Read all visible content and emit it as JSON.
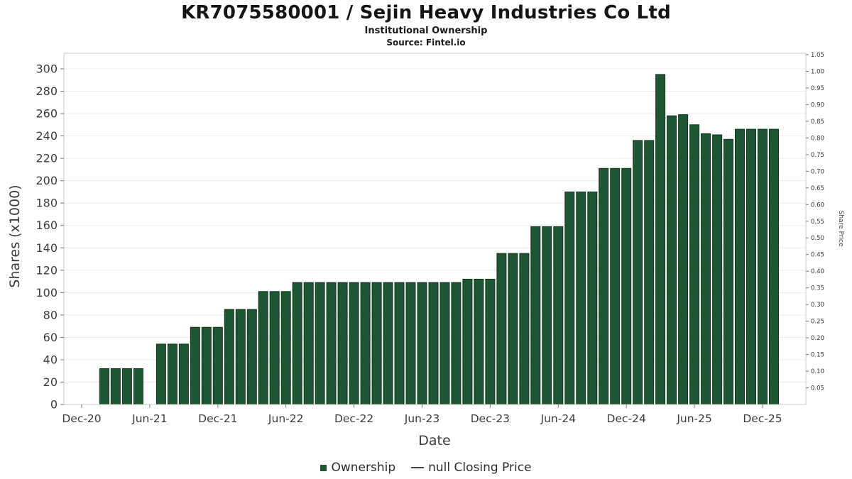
{
  "header": {
    "title": "KR7075580001 / Sejin Heavy Industries Co Ltd",
    "subtitle": "Institutional Ownership",
    "source": "Source: Fintel.io"
  },
  "chart_data": {
    "type": "bar",
    "title": "KR7075580001 / Sejin Heavy Industries Co Ltd",
    "subtitle": "Institutional Ownership",
    "source": "Source: Fintel.io",
    "xlabel": "Date",
    "ylabel": "Shares (x1000)",
    "ylabel_right": "Share Price",
    "series_name": "Ownership",
    "grid": "horizontal",
    "x_tick_labels": [
      "Dec-20",
      "Jun-21",
      "Dec-21",
      "Jun-22",
      "Dec-22",
      "Jun-23",
      "Dec-23",
      "Jun-24",
      "Dec-24",
      "Jun-25",
      "Dec-25"
    ],
    "left_axis": {
      "min": 0,
      "max": 300,
      "step": 20
    },
    "right_axis": {
      "min": 0.05,
      "max": 1.05,
      "step": 0.05
    },
    "bar_color": "#1e5631",
    "bar_edge_color": "#0e3a1c",
    "x_months": [
      "2021-02",
      "2021-03",
      "2021-04",
      "2021-05",
      "2021-07",
      "2021-08",
      "2021-09",
      "2021-10",
      "2021-11",
      "2021-12",
      "2022-01",
      "2022-02",
      "2022-03",
      "2022-04",
      "2022-05",
      "2022-06",
      "2022-07",
      "2022-08",
      "2022-09",
      "2022-10",
      "2022-11",
      "2022-12",
      "2023-01",
      "2023-02",
      "2023-03",
      "2023-04",
      "2023-05",
      "2023-06",
      "2023-07",
      "2023-08",
      "2023-09",
      "2023-10",
      "2023-11",
      "2023-12",
      "2024-01",
      "2024-02",
      "2024-03",
      "2024-04",
      "2024-05",
      "2024-06",
      "2024-07",
      "2024-08",
      "2024-09",
      "2024-10",
      "2024-11",
      "2024-12",
      "2025-01",
      "2025-02",
      "2025-03",
      "2025-04",
      "2025-05",
      "2025-06",
      "2025-07",
      "2025-08",
      "2025-09",
      "2025-10",
      "2025-11",
      "2025-12",
      "2026-01"
    ],
    "values": [
      32,
      32,
      32,
      32,
      54,
      54,
      54,
      69,
      69,
      69,
      85,
      85,
      85,
      101,
      101,
      101,
      109,
      109,
      109,
      109,
      109,
      109,
      109,
      109,
      109,
      109,
      109,
      109,
      109,
      109,
      109,
      112,
      112,
      112,
      135,
      135,
      135,
      159,
      159,
      159,
      190,
      190,
      190,
      211,
      211,
      211,
      236,
      236,
      295,
      258,
      259,
      250,
      242,
      241,
      237,
      246,
      246,
      246,
      246
    ],
    "legend": {
      "position": "bottom",
      "items": [
        {
          "label": "Ownership",
          "marker": "square",
          "color": "#1e5631"
        },
        {
          "label": "null Closing Price",
          "marker": "line",
          "color": "#474747"
        }
      ]
    }
  }
}
